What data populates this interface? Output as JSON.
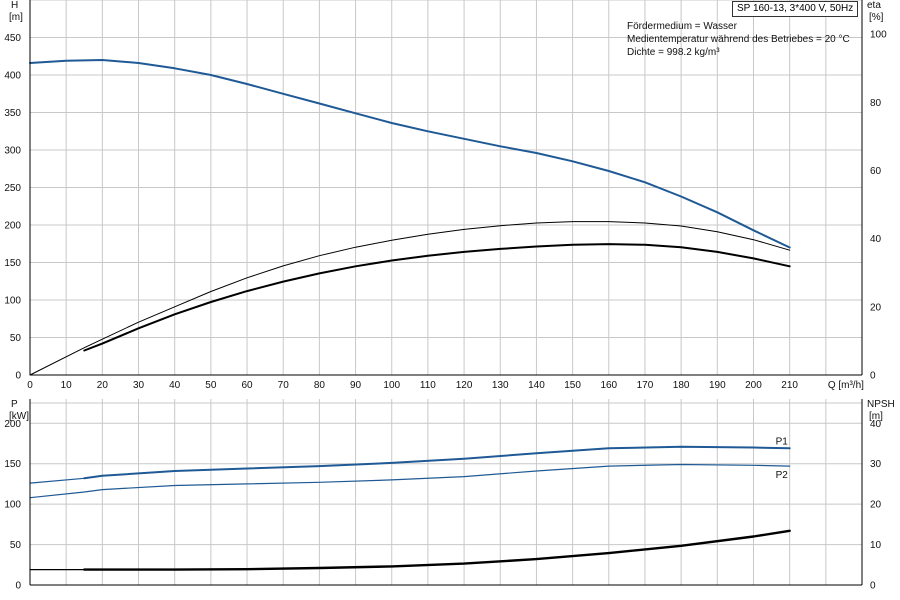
{
  "header": {
    "title": "SP 160-13, 3*400 V, 50Hz",
    "info": [
      "Fördermedium = Wasser",
      "Medientemperatur während des Betriebes = 20 °C",
      "Dichte = 998.2 kg/m³"
    ]
  },
  "chart_data": [
    {
      "type": "line",
      "xlabel": "Q [m³/h]",
      "ylabel_left": [
        "H",
        "[m]"
      ],
      "ylabel_right": [
        "eta",
        "[%]"
      ],
      "xlim": [
        0,
        230
      ],
      "ylim": [
        0,
        500
      ],
      "ylim_right": [
        0,
        110
      ],
      "x_ticks": [
        0,
        10,
        20,
        30,
        40,
        50,
        60,
        70,
        80,
        90,
        100,
        110,
        120,
        130,
        140,
        150,
        160,
        170,
        180,
        190,
        200,
        210
      ],
      "x_tick_labels": [
        "0",
        "10",
        "20",
        "30",
        "40",
        "50",
        "60",
        "70",
        "80",
        "90",
        "100",
        "110",
        "120",
        "130",
        "140",
        "150",
        "160",
        "170",
        "180",
        "190",
        "200",
        "210"
      ],
      "y_ticks": [
        0,
        50,
        100,
        150,
        200,
        250,
        300,
        350,
        400,
        450
      ],
      "y_tick_labels": [
        "0",
        "50",
        "100",
        "150",
        "200",
        "250",
        "300",
        "350",
        "400",
        "450"
      ],
      "y_ticks_right": [
        0,
        20,
        40,
        60,
        80,
        100
      ],
      "y_tick_labels_right": [
        "0",
        "20",
        "40",
        "60",
        "80",
        "100"
      ],
      "grid": true,
      "series": [
        {
          "axis": "left",
          "color": "#1f5a96",
          "width": 2,
          "x": [
            0,
            10,
            20,
            30,
            40,
            50,
            60,
            70,
            80,
            90,
            100,
            110,
            120,
            130,
            140,
            150,
            160,
            170,
            180,
            190,
            200,
            210
          ],
          "values": [
            416,
            419,
            420,
            416,
            409,
            400,
            388,
            375,
            362,
            349,
            336,
            325,
            315,
            305,
            296,
            285,
            272,
            257,
            238,
            217,
            193,
            170
          ]
        },
        {
          "axis": "right",
          "color": "#000000",
          "width": 1,
          "x": [
            0,
            15,
            20,
            30,
            40,
            50,
            60,
            70,
            80,
            90,
            100,
            110,
            120,
            130,
            140,
            150,
            160,
            170,
            180,
            190,
            200,
            210
          ],
          "values": [
            0,
            8,
            10.5,
            15.5,
            20,
            24.5,
            28.5,
            32,
            35,
            37.5,
            39.5,
            41.3,
            42.7,
            43.8,
            44.6,
            45,
            45,
            44.6,
            43.7,
            42,
            39.7,
            36.6
          ]
        },
        {
          "axis": "right",
          "color": "#000000",
          "width": 2,
          "x": [
            15,
            20,
            30,
            40,
            50,
            60,
            70,
            80,
            90,
            100,
            110,
            120,
            130,
            140,
            150,
            160,
            170,
            180,
            190,
            200,
            210
          ],
          "values": [
            7.2,
            9.2,
            13.7,
            17.8,
            21.4,
            24.6,
            27.4,
            29.8,
            31.9,
            33.6,
            35,
            36.1,
            37,
            37.7,
            38.2,
            38.4,
            38.2,
            37.5,
            36.1,
            34.2,
            31.9
          ]
        }
      ]
    },
    {
      "type": "line",
      "ylabel_left": [
        "P",
        "[kW]"
      ],
      "ylabel_right": [
        "NPSH",
        "[m]"
      ],
      "xlim": [
        0,
        230
      ],
      "ylim": [
        0,
        230
      ],
      "ylim_right": [
        0,
        46
      ],
      "y_ticks": [
        0,
        50,
        100,
        150,
        200
      ],
      "y_tick_labels": [
        "0",
        "50",
        "100",
        "150",
        "200"
      ],
      "y_ticks_right": [
        0,
        10,
        20,
        30,
        40
      ],
      "y_tick_labels_right": [
        "0",
        "10",
        "20",
        "30",
        "40"
      ],
      "grid": true,
      "series": [
        {
          "name": "P1",
          "axis": "left",
          "color": "#1f5a96",
          "width": 1.2,
          "x": [
            0,
            15,
            20,
            40,
            60,
            80,
            100,
            120,
            140,
            160,
            180,
            200,
            210
          ],
          "values": [
            126,
            132,
            135,
            141,
            144,
            147,
            151,
            156,
            163,
            169,
            171,
            170,
            169
          ]
        },
        {
          "name": "P1",
          "axis": "left",
          "color": "#1f5a96",
          "width": 2,
          "x": [
            15,
            20,
            40,
            60,
            80,
            100,
            120,
            140,
            160,
            180,
            200,
            210
          ],
          "values": [
            132,
            135,
            141,
            144,
            147,
            151,
            156,
            163,
            169,
            171,
            170,
            169
          ]
        },
        {
          "name": "P2",
          "axis": "left",
          "color": "#1f5a96",
          "width": 1.2,
          "x": [
            0,
            15,
            20,
            40,
            60,
            80,
            100,
            120,
            140,
            160,
            180,
            200,
            210
          ],
          "values": [
            108,
            115,
            118,
            123,
            125,
            127,
            130,
            134,
            141,
            147,
            149,
            148,
            147
          ]
        },
        {
          "axis": "right",
          "color": "#000000",
          "width": 2.4,
          "x": [
            15,
            20,
            40,
            60,
            80,
            100,
            120,
            140,
            160,
            180,
            200,
            210
          ],
          "values": [
            3.8,
            3.8,
            3.8,
            3.9,
            4.2,
            4.6,
            5.3,
            6.4,
            7.9,
            9.7,
            12,
            13.4
          ]
        },
        {
          "axis": "right",
          "color": "#000000",
          "width": 1.2,
          "x": [
            0,
            15
          ],
          "values": [
            3.8,
            3.8
          ]
        }
      ],
      "end_labels": [
        "P1",
        "P2"
      ]
    }
  ]
}
